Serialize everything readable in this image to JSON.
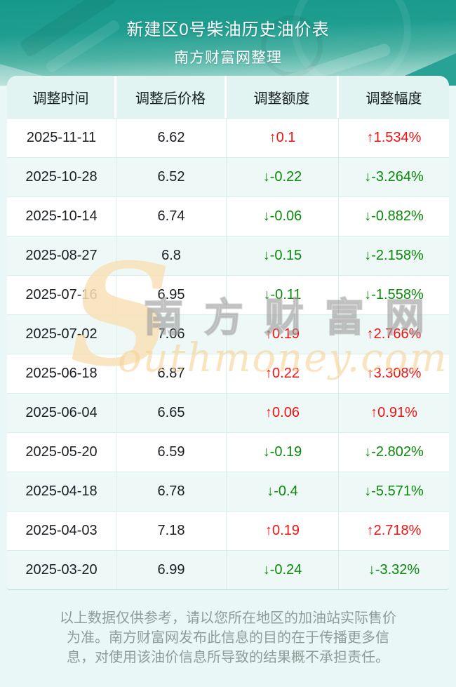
{
  "header": {
    "title": "新建区0号柴油历史油价表",
    "subtitle": "南方财富网整理"
  },
  "table": {
    "columns": [
      "调整时间",
      "调整后价格",
      "调整额度",
      "调整幅度"
    ],
    "rows": [
      {
        "date": "2025-11-11",
        "price": "6.62",
        "change": "↑0.1",
        "percent": "↑1.534%",
        "direction": "up"
      },
      {
        "date": "2025-10-28",
        "price": "6.52",
        "change": "↓-0.22",
        "percent": "↓-3.264%",
        "direction": "down"
      },
      {
        "date": "2025-10-14",
        "price": "6.74",
        "change": "↓-0.06",
        "percent": "↓-0.882%",
        "direction": "down"
      },
      {
        "date": "2025-08-27",
        "price": "6.8",
        "change": "↓-0.15",
        "percent": "↓-2.158%",
        "direction": "down"
      },
      {
        "date": "2025-07-16",
        "price": "6.95",
        "change": "↓-0.11",
        "percent": "↓-1.558%",
        "direction": "down"
      },
      {
        "date": "2025-07-02",
        "price": "7.06",
        "change": "↑0.19",
        "percent": "↑2.766%",
        "direction": "up"
      },
      {
        "date": "2025-06-18",
        "price": "6.87",
        "change": "↑0.22",
        "percent": "↑3.308%",
        "direction": "up"
      },
      {
        "date": "2025-06-04",
        "price": "6.65",
        "change": "↑0.06",
        "percent": "↑0.91%",
        "direction": "up"
      },
      {
        "date": "2025-05-20",
        "price": "6.59",
        "change": "↓-0.19",
        "percent": "↓-2.802%",
        "direction": "down"
      },
      {
        "date": "2025-04-18",
        "price": "6.78",
        "change": "↓-0.4",
        "percent": "↓-5.571%",
        "direction": "down"
      },
      {
        "date": "2025-04-03",
        "price": "7.18",
        "change": "↑0.19",
        "percent": "↑2.718%",
        "direction": "up"
      },
      {
        "date": "2025-03-20",
        "price": "6.99",
        "change": "↓-0.24",
        "percent": "↓-3.32%",
        "direction": "down"
      }
    ]
  },
  "chart_data": {
    "type": "table",
    "title": "新建区0号柴油历史油价表",
    "subtitle": "南方财富网整理",
    "columns": [
      "调整时间",
      "调整后价格",
      "调整额度",
      "调整幅度"
    ],
    "x": [
      "2025-11-11",
      "2025-10-28",
      "2025-10-14",
      "2025-08-27",
      "2025-07-16",
      "2025-07-02",
      "2025-06-18",
      "2025-06-04",
      "2025-05-20",
      "2025-04-18",
      "2025-04-03",
      "2025-03-20"
    ],
    "series": [
      {
        "name": "调整后价格",
        "values": [
          6.62,
          6.52,
          6.74,
          6.8,
          6.95,
          7.06,
          6.87,
          6.65,
          6.59,
          6.78,
          7.18,
          6.99
        ]
      },
      {
        "name": "调整额度",
        "values": [
          0.1,
          -0.22,
          -0.06,
          -0.15,
          -0.11,
          0.19,
          0.22,
          0.06,
          -0.19,
          -0.4,
          0.19,
          -0.24
        ]
      },
      {
        "name": "调整幅度(%)",
        "values": [
          1.534,
          -3.264,
          -0.882,
          -2.158,
          -1.558,
          2.766,
          3.308,
          0.91,
          -2.802,
          -5.571,
          2.718,
          -3.32
        ]
      }
    ],
    "legend_position": "none",
    "grid": true
  },
  "watermark": {
    "initial": "S",
    "cn": "南方财富网",
    "en": "outhmoney.com"
  },
  "footer": {
    "lines": [
      "以上数据仅供参考，请以您所在地区的加油站实际售价",
      "为准。南方财富网发布此信息的目的在于传播更多信",
      "息，对使用该油价信息所导致的结果概不承担责任。"
    ]
  },
  "colors": {
    "up_red": "#f31212",
    "down_green": "#0a8a0a",
    "hero_teal_top": "#16988a",
    "hero_teal_bottom": "#c6e9e3",
    "table_header_bg": "#e1f4f1",
    "row_alt_bg": "#eef8f6",
    "page_bg": "#e9f8f6",
    "watermark_cream": "#f8e0b7",
    "disclaimer_gray": "#8f9c99"
  }
}
